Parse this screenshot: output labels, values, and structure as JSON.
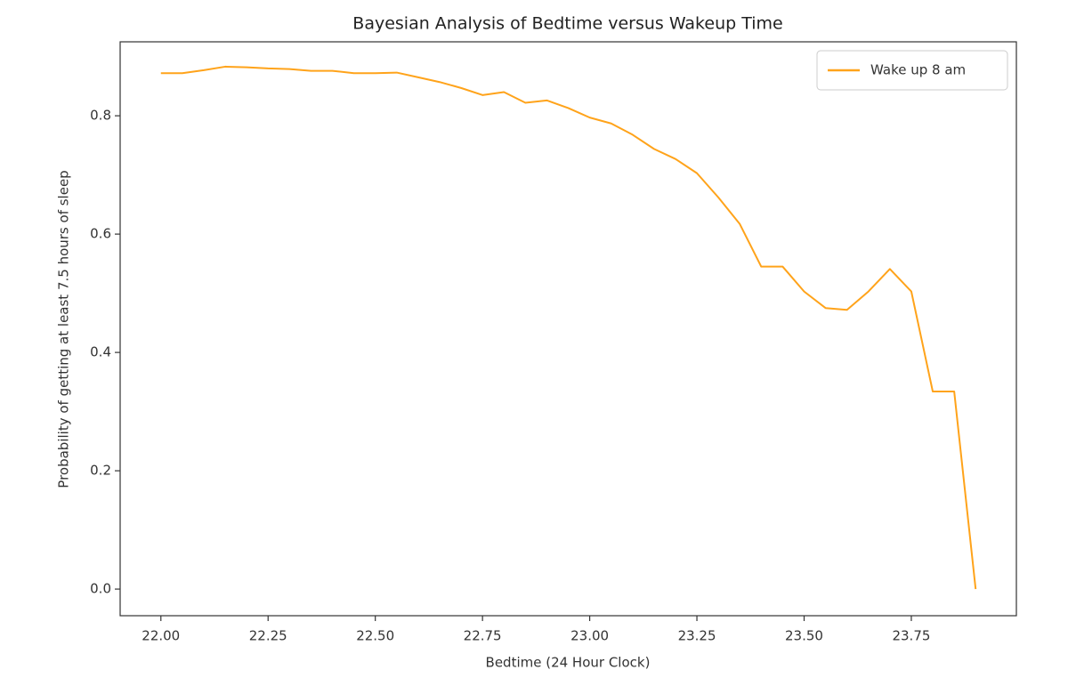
{
  "chart_data": {
    "type": "line",
    "title": "Bayesian Analysis of Bedtime versus Wakeup Time",
    "xlabel": "Bedtime (24 Hour Clock)",
    "ylabel": "Probability of getting at least 7.5 hours of sleep",
    "x": [
      22.0,
      22.05,
      22.1,
      22.15,
      22.2,
      22.25,
      22.3,
      22.35,
      22.4,
      22.45,
      22.5,
      22.55,
      22.6,
      22.65,
      22.7,
      22.75,
      22.8,
      22.85,
      22.9,
      22.95,
      23.0,
      23.05,
      23.1,
      23.15,
      23.2,
      23.25,
      23.3,
      23.35,
      23.4,
      23.45,
      23.5,
      23.55,
      23.6,
      23.65,
      23.7,
      23.75,
      23.8,
      23.85,
      23.9
    ],
    "series": [
      {
        "name": "Wake up 8 am",
        "color": "#ffa31a",
        "values": [
          0.872,
          0.872,
          0.877,
          0.883,
          0.882,
          0.88,
          0.879,
          0.876,
          0.876,
          0.872,
          0.872,
          0.873,
          0.865,
          0.857,
          0.847,
          0.835,
          0.84,
          0.822,
          0.826,
          0.813,
          0.797,
          0.787,
          0.768,
          0.744,
          0.727,
          0.703,
          0.662,
          0.617,
          0.545,
          0.545,
          0.503,
          0.475,
          0.472,
          0.503,
          0.541,
          0.503,
          0.334,
          0.334,
          0.0
        ]
      }
    ],
    "xlim": [
      21.905,
      23.995
    ],
    "ylim": [
      -0.045,
      0.925
    ],
    "xticks": [
      {
        "value": 22.0,
        "label": "22.00"
      },
      22.25,
      {
        "value": 22.5,
        "label": "22.50"
      },
      22.75,
      {
        "value": 23.0,
        "label": "23.00"
      },
      23.25,
      {
        "value": 23.5,
        "label": "23.50"
      },
      23.75
    ],
    "yticks": [
      {
        "value": 0.0,
        "label": "0.0"
      },
      0.2,
      0.4,
      0.6,
      0.8
    ],
    "grid": false,
    "legend": "upper right"
  }
}
